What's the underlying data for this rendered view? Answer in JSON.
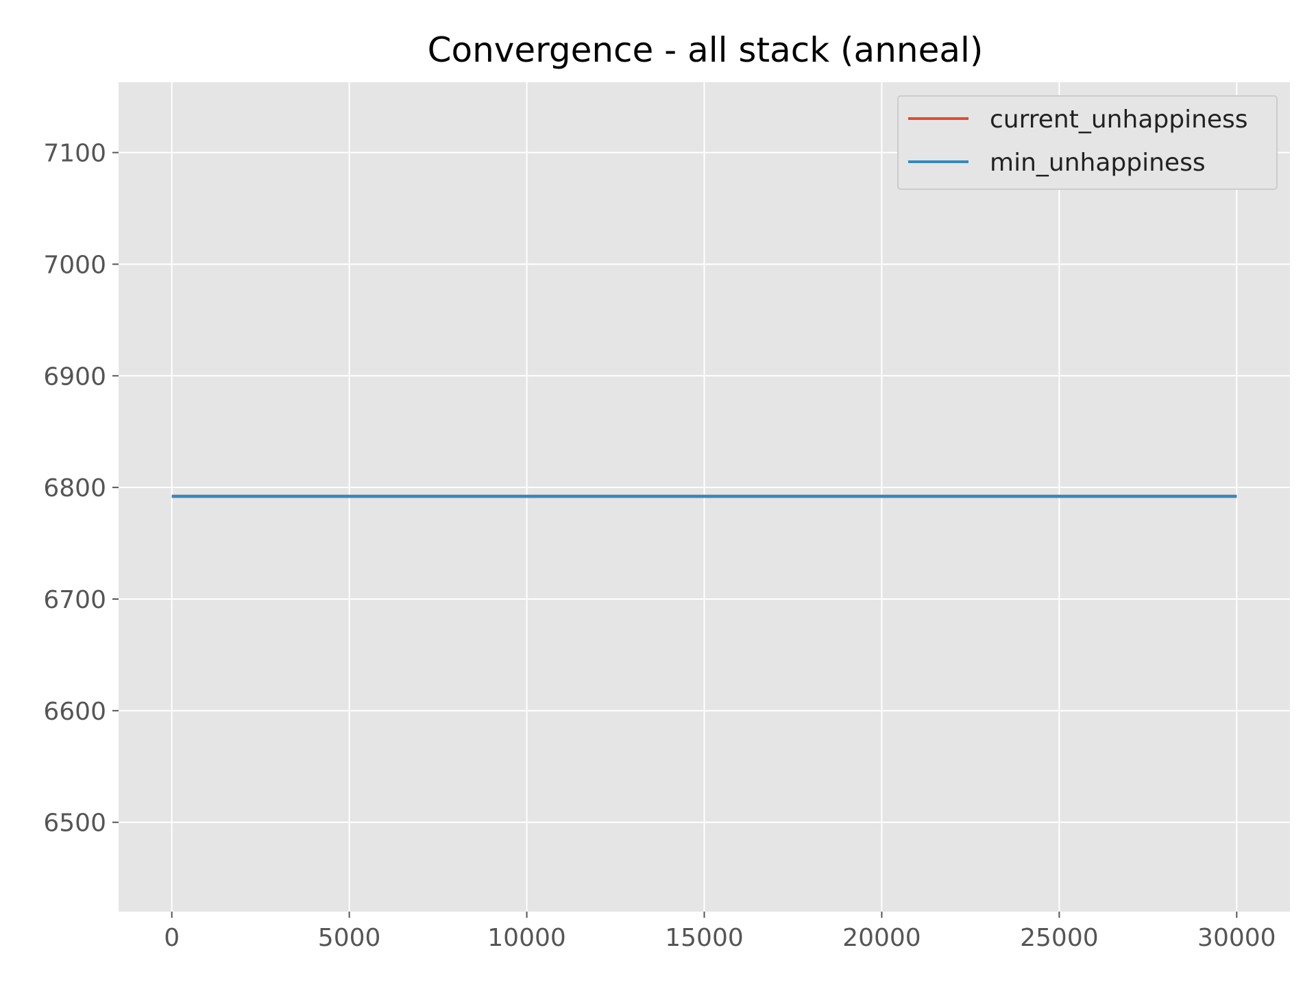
{
  "chart_data": {
    "type": "line",
    "title": "Convergence - all stack (anneal)",
    "xlabel": "",
    "ylabel": "",
    "xlim": [
      -1500,
      31500
    ],
    "ylim": [
      6420,
      7163
    ],
    "x_ticks": [
      0,
      5000,
      10000,
      15000,
      20000,
      25000,
      30000
    ],
    "x_tick_labels": [
      "0",
      "5000",
      "10000",
      "15000",
      "20000",
      "25000",
      "30000"
    ],
    "y_ticks": [
      6500,
      6600,
      6700,
      6800,
      6900,
      7000,
      7100
    ],
    "y_tick_labels": [
      "6500",
      "6600",
      "6700",
      "6800",
      "6900",
      "7000",
      "7100"
    ],
    "grid": true,
    "legend_position": "top-right",
    "style": {
      "plot_background": "#e5e5e5",
      "grid_color": "#ffffff",
      "tick_color": "#555555"
    },
    "series": [
      {
        "name": "current_unhappiness",
        "color": "#e24a33",
        "x": [
          0,
          30000
        ],
        "y": [
          6792,
          6792
        ]
      },
      {
        "name": "min_unhappiness",
        "color": "#348abd",
        "x": [
          0,
          30000
        ],
        "y": [
          6792,
          6792
        ]
      }
    ]
  }
}
